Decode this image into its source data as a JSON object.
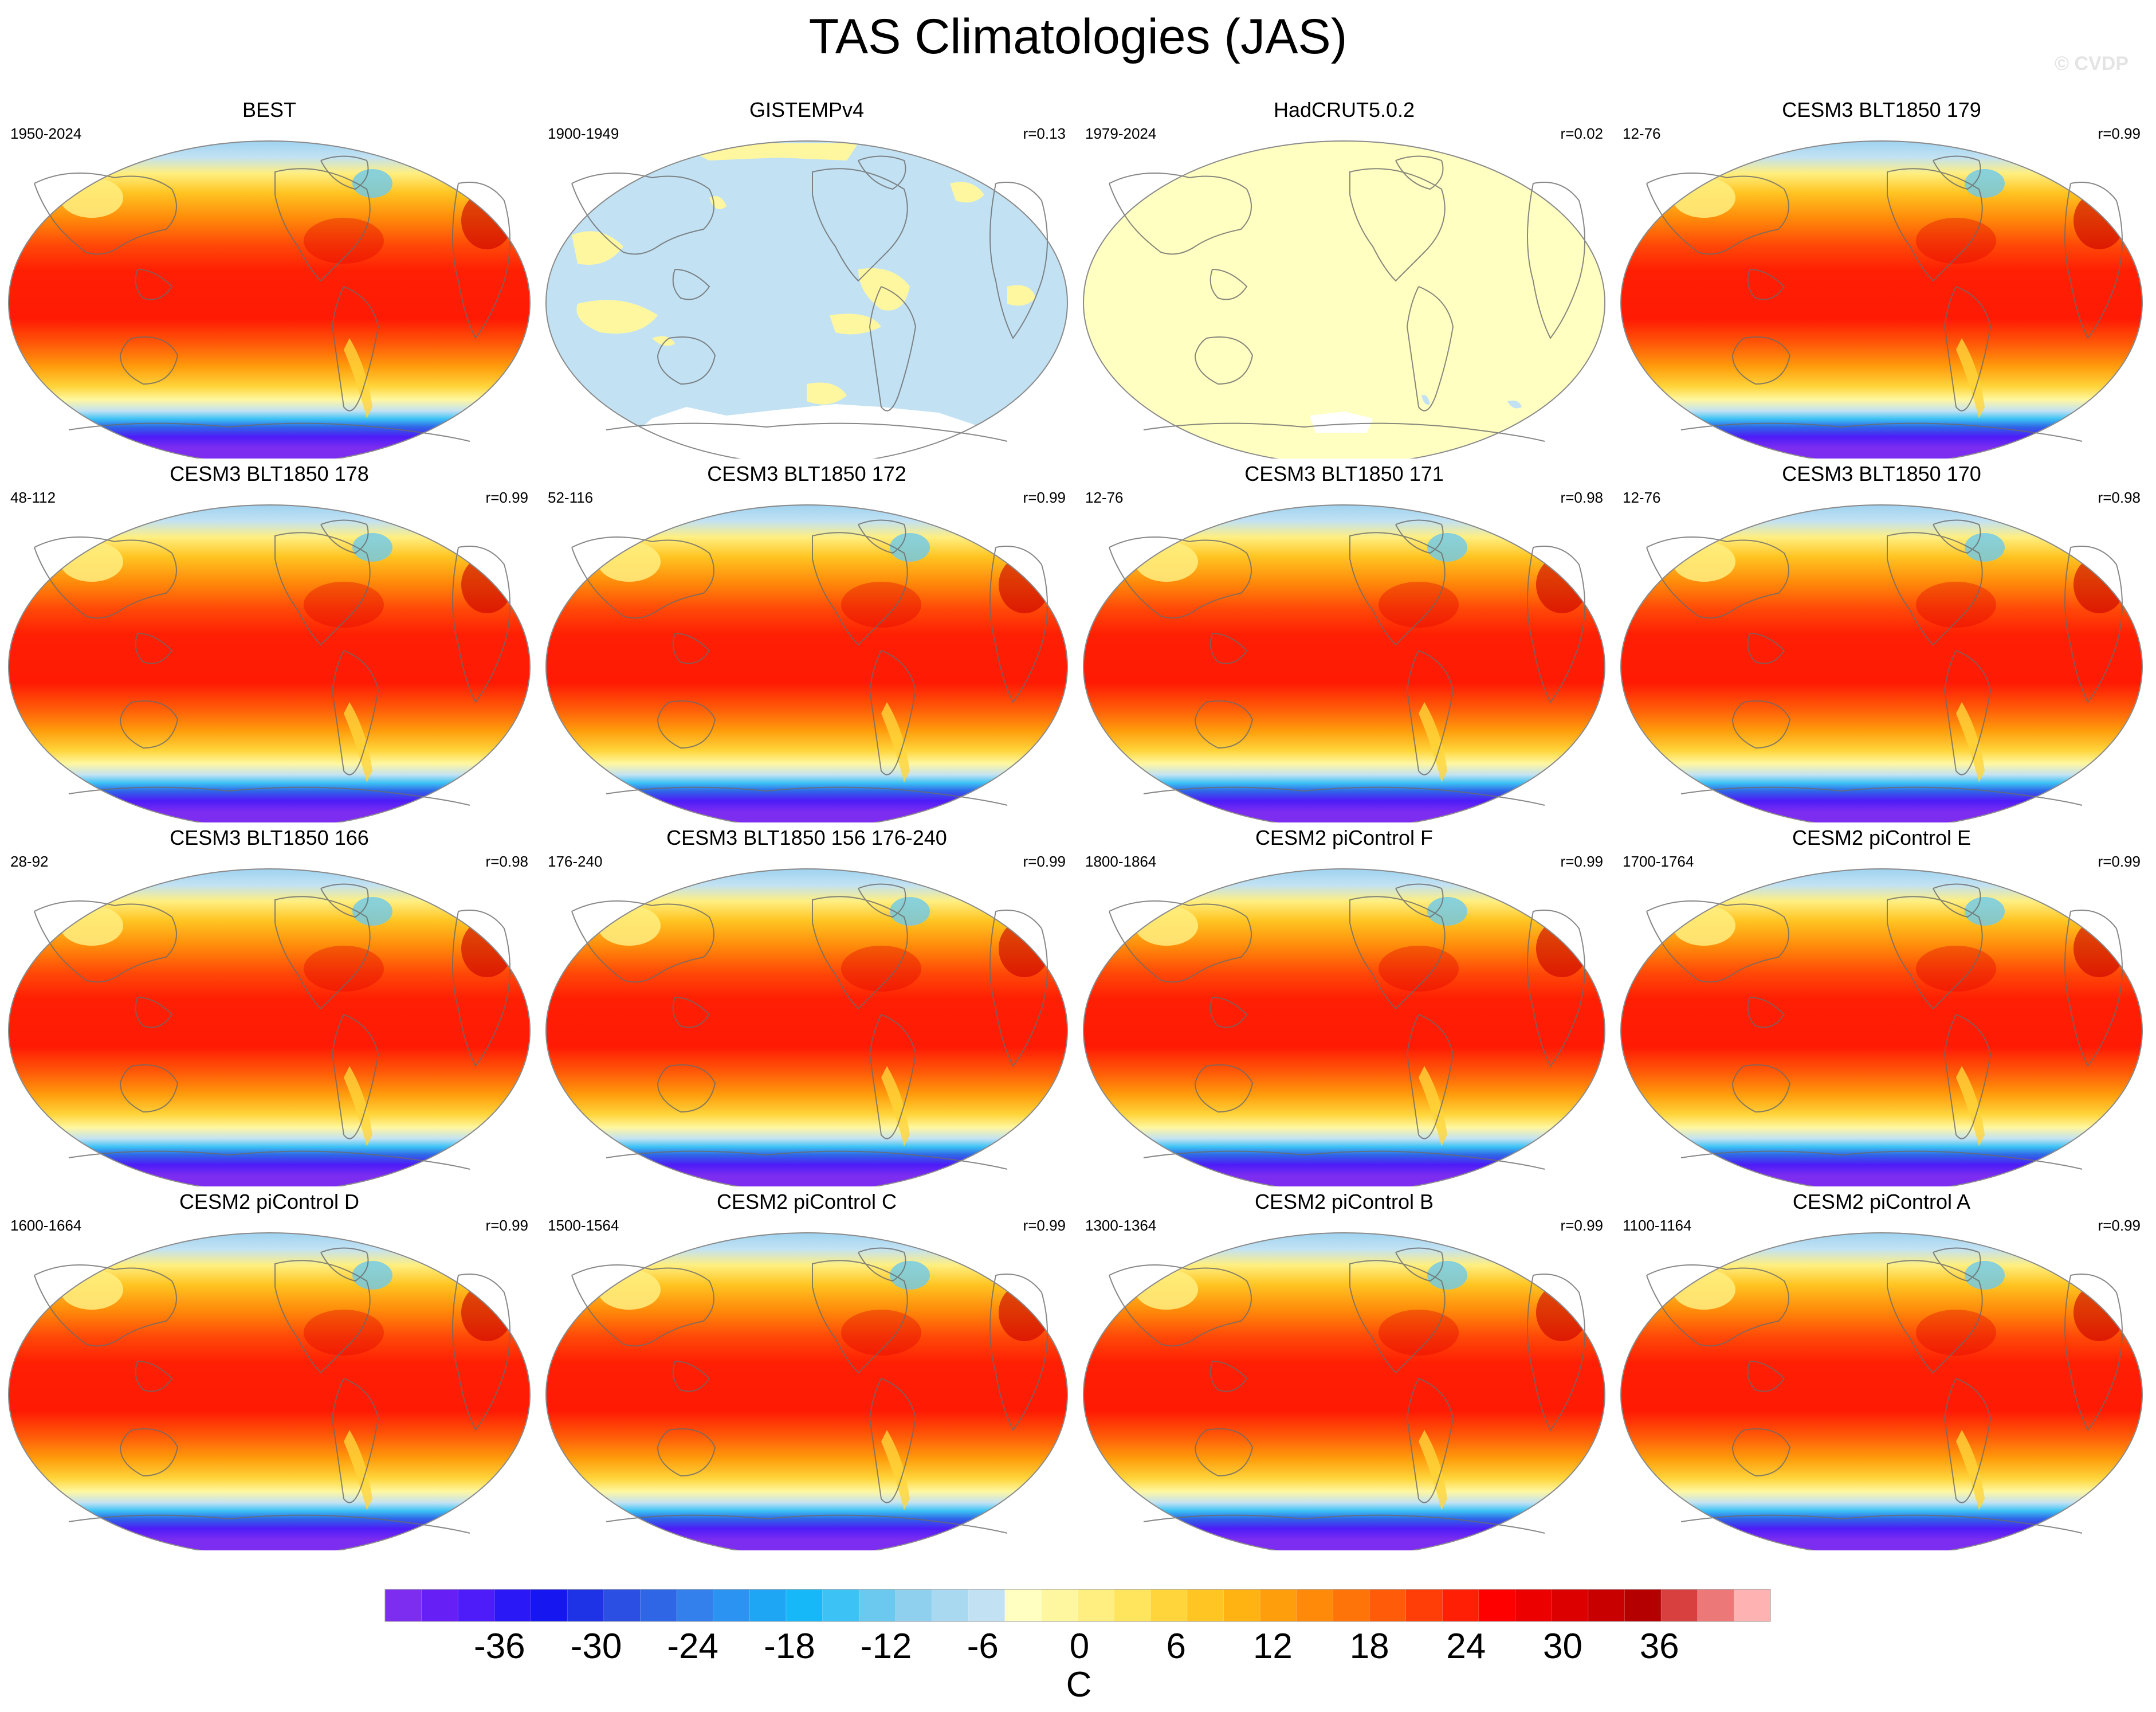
{
  "title": "TAS Climatologies (JAS)",
  "copyright": "© CVDP",
  "chart_data": {
    "type": "heatmap",
    "variable": "TAS",
    "season": "JAS",
    "units": "C",
    "projection": "Robinson (Pacific-centered)",
    "colorbar": {
      "ticks": [
        -36,
        -30,
        -24,
        -18,
        -12,
        -6,
        0,
        6,
        12,
        18,
        24,
        30,
        36
      ],
      "tick_labels": [
        "-36",
        "-30",
        "-24",
        "-18",
        "-12",
        "-6",
        "0",
        "6",
        "12",
        "18",
        "24",
        "30",
        "36"
      ],
      "unit_label": "C",
      "levels_range": [
        -42,
        42
      ],
      "level_step": 2,
      "colors": [
        "#7d2df0",
        "#6620f5",
        "#4d1cf8",
        "#2b18f6",
        "#1616f0",
        "#1e33e6",
        "#2a4fe2",
        "#2f66e6",
        "#3380ec",
        "#2b94f2",
        "#1ea6f5",
        "#17b8f7",
        "#3cc2f5",
        "#6bc9ef",
        "#8fd0ee",
        "#a9d9f0",
        "#c2e2f3",
        "#ffffc2",
        "#fff7a0",
        "#ffef80",
        "#ffe45e",
        "#ffd53b",
        "#ffc522",
        "#ffb312",
        "#ff9e0d",
        "#ff8a0a",
        "#ff7409",
        "#ff5b08",
        "#ff3d06",
        "#ff1f04",
        "#ff0000",
        "#ec0000",
        "#dc0000",
        "#c80000",
        "#b50000",
        "#d84040",
        "#ec7878",
        "#ffb2b2"
      ]
    },
    "panels": [
      {
        "title": "BEST",
        "period": "1950-2024",
        "r": "",
        "style": "full"
      },
      {
        "title": "GISTEMPv4",
        "period": "1900-1949",
        "r": "r=0.13",
        "style": "gistemp"
      },
      {
        "title": "HadCRUT5.0.2",
        "period": "1979-2024",
        "r": "r=0.02",
        "style": "hadcrut"
      },
      {
        "title": "CESM3 BLT1850 179",
        "period": "12-76",
        "r": "r=0.99",
        "style": "full"
      },
      {
        "title": "CESM3 BLT1850 178",
        "period": "48-112",
        "r": "r=0.99",
        "style": "full"
      },
      {
        "title": "CESM3 BLT1850 172",
        "period": "52-116",
        "r": "r=0.99",
        "style": "full"
      },
      {
        "title": "CESM3 BLT1850 171",
        "period": "12-76",
        "r": "r=0.98",
        "style": "full"
      },
      {
        "title": "CESM3 BLT1850 170",
        "period": "12-76",
        "r": "r=0.98",
        "style": "full"
      },
      {
        "title": "CESM3 BLT1850 166",
        "period": "28-92",
        "r": "r=0.98",
        "style": "full"
      },
      {
        "title": "CESM3 BLT1850 156 176-240",
        "period": "176-240",
        "r": "r=0.99",
        "style": "full"
      },
      {
        "title": "CESM2 piControl F",
        "period": "1800-1864",
        "r": "r=0.99",
        "style": "full"
      },
      {
        "title": "CESM2 piControl E",
        "period": "1700-1764",
        "r": "r=0.99",
        "style": "full"
      },
      {
        "title": "CESM2 piControl D",
        "period": "1600-1664",
        "r": "r=0.99",
        "style": "full"
      },
      {
        "title": "CESM2 piControl C",
        "period": "1500-1564",
        "r": "r=0.99",
        "style": "full"
      },
      {
        "title": "CESM2 piControl B",
        "period": "1300-1364",
        "r": "r=0.99",
        "style": "full"
      },
      {
        "title": "CESM2 piControl A",
        "period": "1100-1164",
        "r": "r=0.99",
        "style": "full"
      }
    ]
  }
}
